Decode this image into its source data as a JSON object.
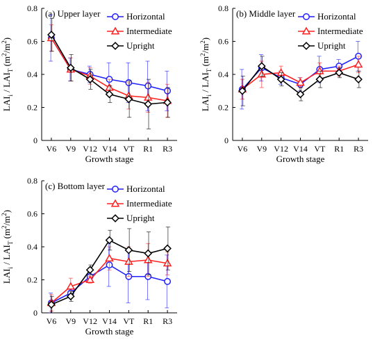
{
  "colors": {
    "Horizontal": "#1f1fff",
    "Intermediate": "#ff2020",
    "Upright": "#000000"
  },
  "chart_data": [
    {
      "type": "line",
      "title": "(a) Upper layer",
      "xlabel": "Growth stage",
      "ylabel": "LAI_i / LAI_T (m²/m²)",
      "ylim": [
        0,
        0.8
      ],
      "yticks": [
        "0",
        "0.2",
        "0.4",
        "0.6",
        "0.8"
      ],
      "categories": [
        "V6",
        "V9",
        "V12",
        "V14",
        "VT",
        "R1",
        "R3"
      ],
      "series": [
        {
          "name": "Horizontal",
          "marker": "circle",
          "values": [
            0.62,
            0.43,
            0.4,
            0.37,
            0.35,
            0.33,
            0.3
          ],
          "err": [
            0.14,
            0.07,
            0.05,
            0.1,
            0.12,
            0.15,
            0.12
          ]
        },
        {
          "name": "Intermediate",
          "marker": "triangle",
          "values": [
            0.62,
            0.43,
            0.39,
            0.32,
            0.27,
            0.26,
            0.24
          ],
          "err": [
            0.08,
            0.07,
            0.05,
            0.05,
            0.08,
            0.09,
            0.1
          ]
        },
        {
          "name": "Upright",
          "marker": "diamond",
          "values": [
            0.64,
            0.44,
            0.37,
            0.28,
            0.25,
            0.22,
            0.23
          ],
          "err": [
            0.1,
            0.08,
            0.06,
            0.05,
            0.11,
            0.15,
            0.09
          ]
        }
      ],
      "legend": "top-right"
    },
    {
      "type": "line",
      "title": "(b) Middle layer",
      "xlabel": "Growth stage",
      "ylabel": "LAI_i / LAI_T (m²/m²)",
      "ylim": [
        0,
        0.8
      ],
      "yticks": [
        "0",
        "0.2",
        "0.4",
        "0.6",
        "0.8"
      ],
      "categories": [
        "V6",
        "V9",
        "V12",
        "V14",
        "VT",
        "R1",
        "R3"
      ],
      "series": [
        {
          "name": "Horizontal",
          "marker": "circle",
          "values": [
            0.31,
            0.44,
            0.38,
            0.34,
            0.43,
            0.45,
            0.51
          ],
          "err": [
            0.12,
            0.08,
            0.04,
            0.04,
            0.08,
            0.04,
            0.09
          ]
        },
        {
          "name": "Intermediate",
          "marker": "triangle",
          "values": [
            0.31,
            0.4,
            0.41,
            0.35,
            0.42,
            0.42,
            0.46
          ],
          "err": [
            0.06,
            0.08,
            0.04,
            0.03,
            0.05,
            0.03,
            0.05
          ]
        },
        {
          "name": "Upright",
          "marker": "diamond",
          "values": [
            0.3,
            0.45,
            0.37,
            0.28,
            0.37,
            0.41,
            0.37
          ],
          "err": [
            0.09,
            0.06,
            0.04,
            0.04,
            0.05,
            0.03,
            0.05
          ]
        }
      ],
      "legend": "top-right"
    },
    {
      "type": "line",
      "title": "(c) Bottom layer",
      "xlabel": "Growth stage",
      "ylabel": "LAI_i / LAI_T (m²/m²)",
      "ylim": [
        0,
        0.8
      ],
      "yticks": [
        "0",
        "0.2",
        "0.4",
        "0.6",
        "0.8"
      ],
      "categories": [
        "V6",
        "V9",
        "V12",
        "V14",
        "VT",
        "R1",
        "R3"
      ],
      "series": [
        {
          "name": "Horizontal",
          "marker": "circle",
          "values": [
            0.06,
            0.12,
            0.22,
            0.29,
            0.22,
            0.22,
            0.19
          ],
          "err": [
            0.06,
            0.03,
            0.03,
            0.13,
            0.16,
            0.14,
            0.16
          ]
        },
        {
          "name": "Intermediate",
          "marker": "triangle",
          "values": [
            0.06,
            0.16,
            0.2,
            0.33,
            0.31,
            0.32,
            0.3
          ],
          "err": [
            0.05,
            0.05,
            0.02,
            0.07,
            0.09,
            0.1,
            0.07
          ]
        },
        {
          "name": "Upright",
          "marker": "diamond",
          "values": [
            0.05,
            0.1,
            0.26,
            0.44,
            0.38,
            0.36,
            0.39
          ],
          "err": [
            0.05,
            0.03,
            0.03,
            0.06,
            0.13,
            0.13,
            0.13
          ]
        }
      ],
      "legend": "top-right"
    }
  ]
}
